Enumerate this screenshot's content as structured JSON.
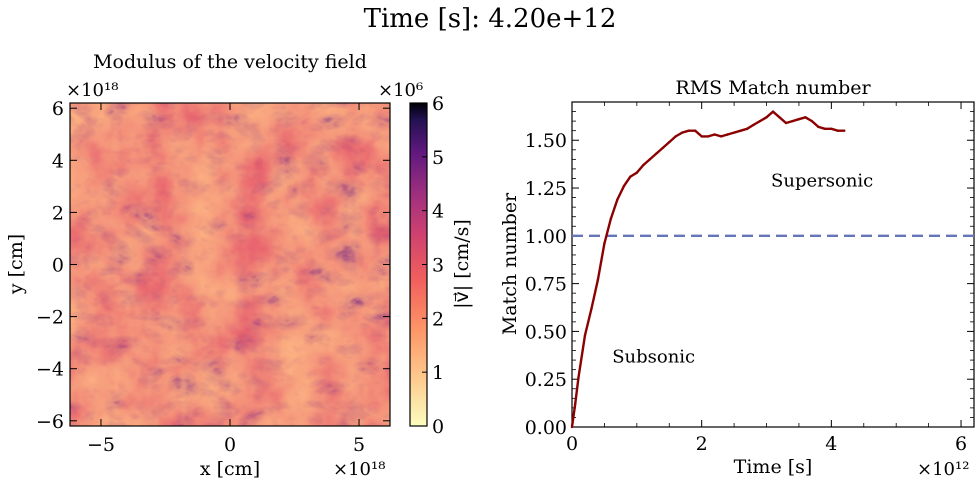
{
  "figure": {
    "suptitle": "Time [s]: 4.20e+12"
  },
  "chart_data": [
    {
      "type": "heatmap",
      "title": "Modulus of the velocity field",
      "xlabel": "x [cm]",
      "ylabel": "y [cm]",
      "x_multiplier": "×10¹⁸",
      "y_multiplier": "×10¹⁸",
      "xlim": [
        -6.2,
        6.2
      ],
      "ylim": [
        -6.2,
        6.2
      ],
      "xticks": [
        -5,
        0,
        5
      ],
      "xtick_labels": [
        "−5",
        "0",
        "5"
      ],
      "yticks": [
        -6,
        -4,
        -2,
        0,
        2,
        4,
        6
      ],
      "ytick_labels": [
        "−6",
        "−4",
        "−2",
        "0",
        "2",
        "4",
        "6"
      ],
      "colormap": "magma_r",
      "colorbar": {
        "label": "|v⃗| [cm/s]",
        "multiplier": "×10⁶",
        "range": [
          0,
          6
        ],
        "ticks": [
          0,
          1,
          2,
          3,
          4,
          5,
          6
        ],
        "tick_labels": [
          "0",
          "1",
          "2",
          "3",
          "4",
          "5",
          "6"
        ]
      }
    },
    {
      "type": "line",
      "title": "RMS Match number",
      "xlabel": "Time [s]",
      "ylabel": "Match number",
      "x_multiplier": "×10¹²",
      "xlim": [
        0,
        6.2
      ],
      "ylim": [
        0,
        1.7
      ],
      "xticks": [
        0,
        2,
        4,
        6
      ],
      "xtick_labels": [
        "0",
        "2",
        "4",
        "6"
      ],
      "yticks": [
        0,
        0.25,
        0.5,
        0.75,
        1.0,
        1.25,
        1.5
      ],
      "ytick_labels": [
        "0.00",
        "0.25",
        "0.50",
        "0.75",
        "1.00",
        "1.25",
        "1.50"
      ],
      "grid": false,
      "series": [
        {
          "color": "#8b0000",
          "x": [
            0,
            0.05,
            0.1,
            0.2,
            0.3,
            0.4,
            0.5,
            0.6,
            0.7,
            0.8,
            0.9,
            1.0,
            1.1,
            1.2,
            1.3,
            1.4,
            1.5,
            1.6,
            1.7,
            1.8,
            1.9,
            2.0,
            2.1,
            2.2,
            2.3,
            2.4,
            2.5,
            2.6,
            2.7,
            2.8,
            2.9,
            3.0,
            3.1,
            3.2,
            3.3,
            3.4,
            3.5,
            3.6,
            3.7,
            3.8,
            3.9,
            4.0,
            4.1,
            4.2
          ],
          "y": [
            0,
            0.12,
            0.26,
            0.48,
            0.62,
            0.77,
            0.96,
            1.09,
            1.19,
            1.26,
            1.31,
            1.33,
            1.37,
            1.4,
            1.43,
            1.46,
            1.49,
            1.52,
            1.54,
            1.55,
            1.55,
            1.52,
            1.52,
            1.53,
            1.52,
            1.53,
            1.54,
            1.55,
            1.56,
            1.58,
            1.6,
            1.62,
            1.65,
            1.62,
            1.59,
            1.6,
            1.61,
            1.62,
            1.6,
            1.57,
            1.56,
            1.56,
            1.55,
            1.55
          ]
        }
      ],
      "reference_line": {
        "y": 1.0,
        "color": "#6674b8",
        "style": "dashed"
      },
      "annotations": [
        {
          "text": "Supersonic",
          "x": 3.07,
          "y": 1.29
        },
        {
          "text": "Subsonic",
          "x": 0.62,
          "y": 0.37
        }
      ]
    }
  ]
}
